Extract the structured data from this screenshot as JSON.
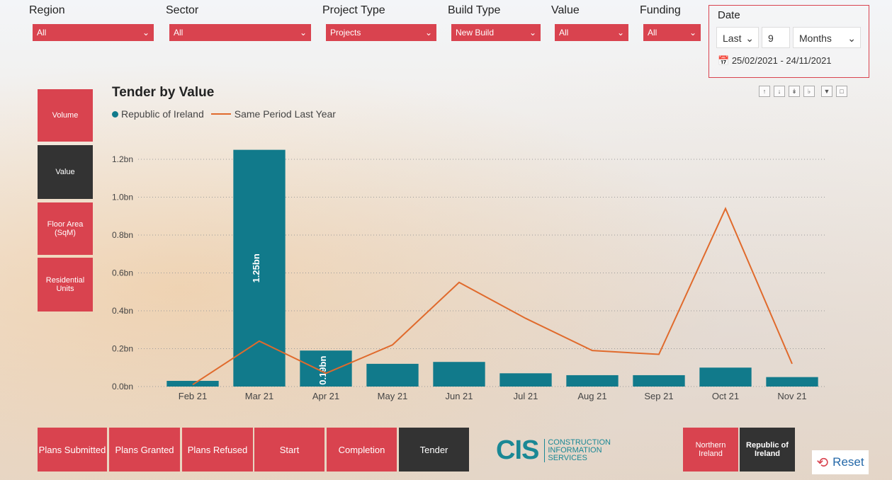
{
  "filters": [
    {
      "label": "Region",
      "value": "All"
    },
    {
      "label": "Sector",
      "value": "All"
    },
    {
      "label": "Project Type",
      "value": "Projects"
    },
    {
      "label": "Build Type",
      "value": "New Build"
    },
    {
      "label": "Value",
      "value": "All"
    },
    {
      "label": "Funding",
      "value": "All"
    }
  ],
  "date": {
    "title": "Date",
    "mode": "Last",
    "count": "9",
    "unit": "Months",
    "range": "25/02/2021 - 24/11/2021"
  },
  "side_buttons": [
    {
      "label": "Volume",
      "active": false
    },
    {
      "label": "Value",
      "active": true
    },
    {
      "label": "Floor Area (SqM)",
      "active": false
    },
    {
      "label": "Residential Units",
      "active": false
    }
  ],
  "bottom_buttons": [
    {
      "label": "Plans Submitted",
      "active": false
    },
    {
      "label": "Plans Granted",
      "active": false
    },
    {
      "label": "Plans Refused",
      "active": false
    },
    {
      "label": "Start",
      "active": false
    },
    {
      "label": "Completion",
      "active": false
    },
    {
      "label": "Tender",
      "active": true
    }
  ],
  "region_buttons": [
    {
      "label": "Northern Ireland",
      "active": false
    },
    {
      "label": "Republic of Ireland",
      "active": true
    }
  ],
  "logo": {
    "mark": "CIS",
    "line1": "CONSTRUCTION",
    "line2": "INFORMATION",
    "line3": "SERVICES"
  },
  "reset_label": "Reset",
  "colors": {
    "accent": "#d9434f",
    "bar": "#117a8b",
    "line": "#e06a2c",
    "dark": "#333333"
  },
  "chart_data": {
    "type": "bar",
    "title": "Tender by Value",
    "categories": [
      "Feb 21",
      "Mar 21",
      "Apr 21",
      "May 21",
      "Jun 21",
      "Jul 21",
      "Aug 21",
      "Sep 21",
      "Oct 21",
      "Nov 21"
    ],
    "series": [
      {
        "name": "Republic of Ireland",
        "type": "bar",
        "values": [
          0.03,
          1.25,
          0.19,
          0.12,
          0.13,
          0.07,
          0.06,
          0.06,
          0.1,
          0.05
        ]
      },
      {
        "name": "Same Period Last Year",
        "type": "line",
        "values": [
          0.01,
          0.24,
          0.07,
          0.22,
          0.55,
          0.36,
          0.19,
          0.17,
          0.94,
          0.12
        ]
      }
    ],
    "data_labels": [
      {
        "category": "Mar 21",
        "text": "1.25bn"
      },
      {
        "category": "Apr 21",
        "text": "0.19bn"
      }
    ],
    "yticks": [
      "0.0bn",
      "0.2bn",
      "0.4bn",
      "0.6bn",
      "0.8bn",
      "1.0bn",
      "1.2bn"
    ],
    "ylim": [
      0,
      1.2
    ],
    "grid": true,
    "legend": "top-left"
  }
}
